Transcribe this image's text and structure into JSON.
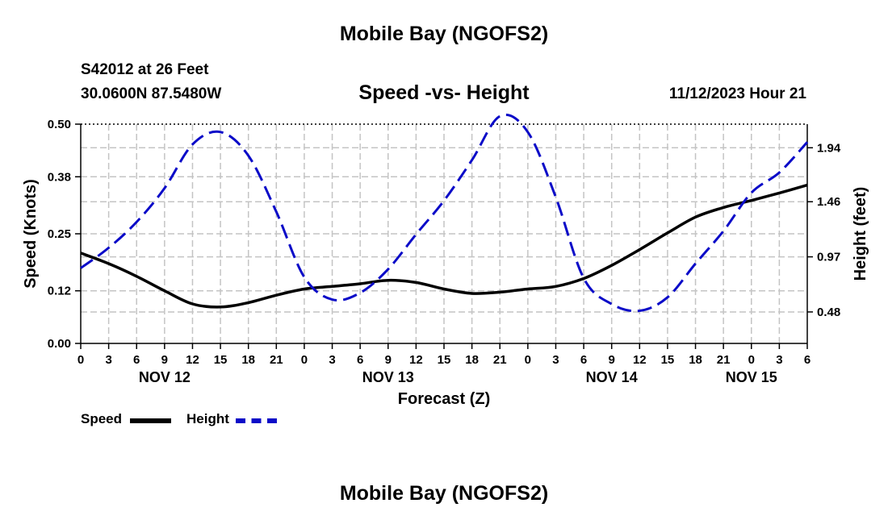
{
  "header": {
    "title": "Mobile Bay (NGOFS2)",
    "station": "S42012 at 26 Feet",
    "coords": "30.0600N  87.5480W",
    "subtitle": "Speed -vs- Height",
    "timestamp": "11/12/2023 Hour 21"
  },
  "footer": {
    "title": "Mobile Bay (NGOFS2)"
  },
  "legend": {
    "speed_label": "Speed",
    "height_label": "Height"
  },
  "colors": {
    "speed": "#000000",
    "height": "#0b0bc8",
    "grid": "#c4c4c4"
  },
  "chart_data": {
    "type": "line",
    "title": "Speed -vs- Height",
    "xlabel": "Forecast (Z)",
    "ylabel": "Speed (Knots)",
    "y2label": "Height (feet)",
    "x_hours_range": [
      0,
      78
    ],
    "x_tick_labels": [
      "0",
      "3",
      "6",
      "9",
      "12",
      "15",
      "18",
      "21",
      "0",
      "3",
      "6",
      "9",
      "12",
      "15",
      "18",
      "21",
      "0",
      "3",
      "6",
      "9",
      "12",
      "15",
      "18",
      "21",
      "0",
      "3",
      "6"
    ],
    "date_labels": [
      {
        "label": "NOV 12",
        "hour": 9
      },
      {
        "label": "NOV 13",
        "hour": 33
      },
      {
        "label": "NOV 14",
        "hour": 57
      },
      {
        "label": "NOV 15",
        "hour": 72
      }
    ],
    "ylim": [
      0,
      0.5
    ],
    "y_tick_labels": [
      "0.00",
      "0.12",
      "0.25",
      "0.38",
      "0.50"
    ],
    "y2_ticks": [
      "0.48",
      "0.97",
      "1.46",
      "1.94"
    ],
    "y2_range_feet": [
      0.2,
      2.15
    ],
    "grid": true,
    "series": [
      {
        "name": "Speed",
        "axis": "left",
        "style": "solid",
        "x": [
          0,
          3,
          6,
          9,
          12,
          15,
          18,
          21,
          24,
          27,
          30,
          33,
          36,
          39,
          42,
          45,
          48,
          51,
          54,
          57,
          60,
          63,
          66,
          69,
          72,
          75,
          78
        ],
        "values": [
          0.206,
          0.182,
          0.153,
          0.12,
          0.09,
          0.083,
          0.093,
          0.11,
          0.124,
          0.13,
          0.136,
          0.144,
          0.139,
          0.124,
          0.114,
          0.117,
          0.124,
          0.13,
          0.148,
          0.178,
          0.214,
          0.252,
          0.288,
          0.31,
          0.326,
          0.343,
          0.361
        ]
      },
      {
        "name": "Height",
        "axis": "right",
        "style": "dashed",
        "x": [
          0,
          3,
          6,
          9,
          12,
          15,
          18,
          21,
          24,
          27,
          30,
          33,
          36,
          39,
          42,
          45,
          48,
          51,
          54,
          57,
          60,
          63,
          66,
          69,
          72,
          75,
          78
        ],
        "values": [
          0.87,
          1.05,
          1.28,
          1.58,
          1.97,
          2.08,
          1.87,
          1.37,
          0.79,
          0.59,
          0.65,
          0.86,
          1.17,
          1.47,
          1.83,
          2.22,
          2.08,
          1.5,
          0.78,
          0.55,
          0.49,
          0.61,
          0.91,
          1.2,
          1.54,
          1.72,
          1.99
        ]
      }
    ]
  }
}
